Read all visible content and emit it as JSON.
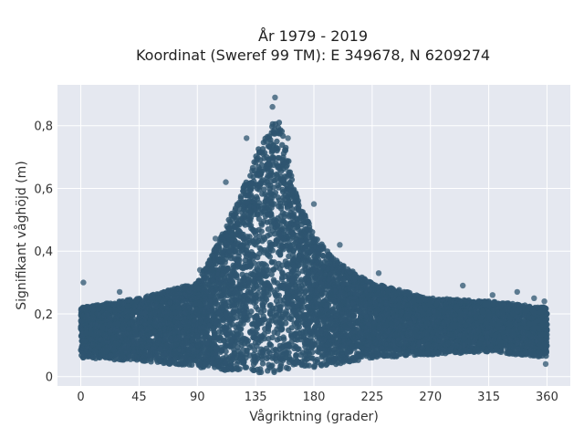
{
  "chart_data": {
    "type": "scatter",
    "title_line1": "År 1979 - 2019",
    "title_line2": "Koordinat (Sweref 99 TM): E 349678, N 6209274",
    "xlabel": "Vågriktning (grader)",
    "ylabel": "Signifikant våghöjd (m)",
    "xlim": [
      -18,
      378
    ],
    "ylim": [
      -0.03,
      0.93
    ],
    "xticks": [
      0,
      45,
      90,
      135,
      180,
      225,
      270,
      315,
      360
    ],
    "xtick_labels": [
      "0",
      "45",
      "90",
      "135",
      "180",
      "225",
      "270",
      "315",
      "360"
    ],
    "yticks": [
      0,
      0.2,
      0.4,
      0.6,
      0.8
    ],
    "ytick_labels": [
      "0",
      "0,2",
      "0,4",
      "0,6",
      "0,8"
    ],
    "grid": true,
    "background_color": "#e5e8f0",
    "marker_color": "#2e5570",
    "envelope": {
      "x": [
        0,
        45,
        90,
        110,
        125,
        135,
        145,
        150,
        155,
        165,
        180,
        200,
        225,
        270,
        315,
        360
      ],
      "upper": [
        0.22,
        0.25,
        0.3,
        0.46,
        0.6,
        0.71,
        0.78,
        0.83,
        0.8,
        0.6,
        0.45,
        0.36,
        0.3,
        0.25,
        0.24,
        0.22
      ],
      "lower": [
        0.06,
        0.05,
        0.03,
        0.02,
        0.01,
        0.01,
        0.01,
        0.01,
        0.02,
        0.03,
        0.03,
        0.04,
        0.06,
        0.07,
        0.08,
        0.06
      ]
    },
    "highlight_points": [
      {
        "x": 2,
        "y": 0.3
      },
      {
        "x": 150,
        "y": 0.89
      },
      {
        "x": 148,
        "y": 0.86
      },
      {
        "x": 128,
        "y": 0.76
      },
      {
        "x": 112,
        "y": 0.62
      },
      {
        "x": 160,
        "y": 0.76
      },
      {
        "x": 180,
        "y": 0.55
      },
      {
        "x": 200,
        "y": 0.42
      },
      {
        "x": 230,
        "y": 0.33
      },
      {
        "x": 295,
        "y": 0.29
      },
      {
        "x": 318,
        "y": 0.26
      },
      {
        "x": 337,
        "y": 0.27
      },
      {
        "x": 350,
        "y": 0.25
      },
      {
        "x": 358,
        "y": 0.24
      },
      {
        "x": 359,
        "y": 0.04
      },
      {
        "x": 30,
        "y": 0.27
      },
      {
        "x": 92,
        "y": 0.34
      },
      {
        "x": 104,
        "y": 0.44
      }
    ]
  }
}
